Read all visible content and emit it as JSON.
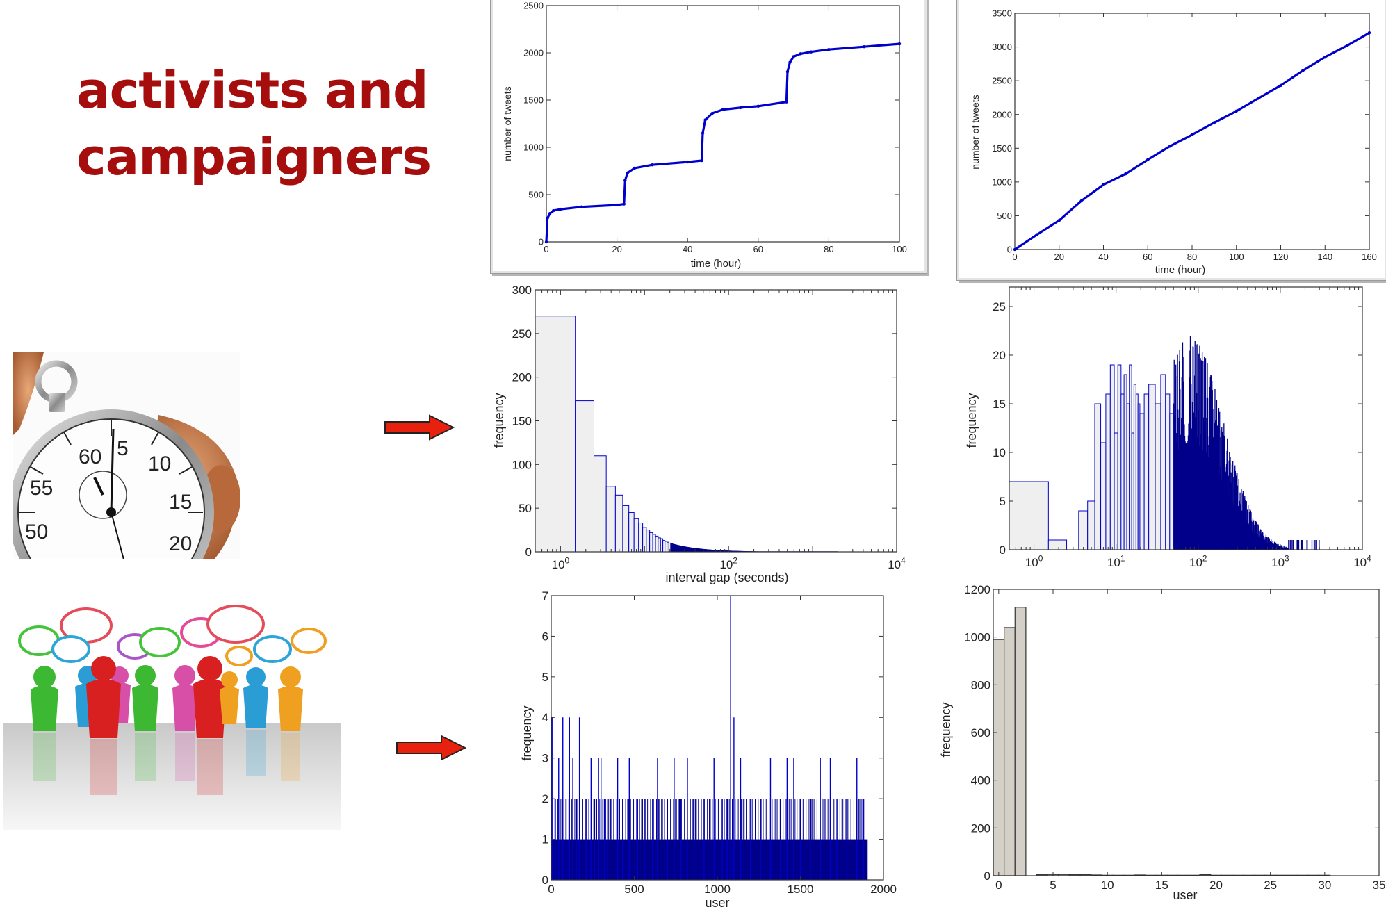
{
  "slide": {
    "title_lines": [
      "activists and",
      "campaigners"
    ],
    "colors": {
      "title": "#a60d0d",
      "series": "#0000cc",
      "histogram": "#00008b",
      "bar_fill": "#d4d0c8",
      "arrow": "#e8210f"
    },
    "images": [
      "stopwatch-photo",
      "crowd-speech-bubbles-illustration"
    ]
  },
  "chart_data": [
    {
      "id": "cumulative-a",
      "type": "line",
      "title": "",
      "xlabel": "time (hour)",
      "ylabel": "number of tweets",
      "xlim": [
        0,
        100
      ],
      "ylim": [
        0,
        2500
      ],
      "xticks": [
        0,
        20,
        40,
        60,
        80,
        100
      ],
      "yticks": [
        0,
        500,
        1000,
        1500,
        2000,
        2500
      ],
      "x": [
        0,
        0.3,
        1,
        2,
        4,
        10,
        20,
        22,
        22.3,
        23,
        25,
        30,
        40,
        44,
        44.3,
        45,
        47,
        50,
        55,
        60,
        68,
        68.3,
        69,
        70,
        72,
        75,
        80,
        90,
        100
      ],
      "y": [
        0,
        250,
        300,
        330,
        345,
        370,
        390,
        400,
        650,
        730,
        780,
        815,
        845,
        860,
        1150,
        1290,
        1360,
        1400,
        1420,
        1435,
        1480,
        1800,
        1900,
        1960,
        1990,
        2010,
        2035,
        2065,
        2095
      ]
    },
    {
      "id": "cumulative-b",
      "type": "line",
      "title": "",
      "xlabel": "time (hour)",
      "ylabel": "number of tweets",
      "xlim": [
        0,
        160
      ],
      "ylim": [
        0,
        3500
      ],
      "xticks": [
        0,
        20,
        40,
        60,
        80,
        100,
        120,
        140,
        160
      ],
      "yticks": [
        0,
        500,
        1000,
        1500,
        2000,
        2500,
        3000,
        3500
      ],
      "x": [
        0,
        10,
        20,
        30,
        40,
        50,
        60,
        70,
        80,
        90,
        100,
        110,
        120,
        130,
        140,
        150,
        160
      ],
      "y": [
        0,
        220,
        430,
        720,
        960,
        1120,
        1330,
        1530,
        1700,
        1880,
        2050,
        2240,
        2430,
        2650,
        2850,
        3020,
        3210
      ]
    },
    {
      "id": "interval-a",
      "type": "bar",
      "title": "",
      "xlabel": "interval gap (seconds)",
      "ylabel": "frequency",
      "xscale": "log",
      "xlim": [
        0.5,
        10000
      ],
      "ylim": [
        0,
        300
      ],
      "xticks": [
        "10^0",
        "10^2",
        "10^4"
      ],
      "yticks": [
        0,
        50,
        100,
        150,
        200,
        250,
        300
      ],
      "bin_left_edges": [
        0.5,
        1.5,
        2.5,
        3.5,
        4.5,
        5.5,
        6.5,
        7.5,
        8.5,
        9.5,
        10.5,
        11.5,
        12.5,
        13.5,
        14.5,
        15.5,
        16.5,
        17.5,
        18.5,
        19.5
      ],
      "values": [
        270,
        173,
        110,
        75,
        65,
        53,
        45,
        38,
        33,
        28,
        25,
        22,
        20,
        18,
        16,
        15,
        13,
        12,
        11,
        10
      ]
    },
    {
      "id": "interval-b",
      "type": "bar",
      "title": "",
      "xlabel": "",
      "ylabel": "frequency",
      "xscale": "log",
      "xlim": [
        0.5,
        10000
      ],
      "ylim": [
        0,
        27
      ],
      "xticks": [
        "10^0",
        "10^1",
        "10^2",
        "10^3",
        "10^4"
      ],
      "yticks": [
        0,
        5,
        10,
        15,
        20,
        25
      ],
      "bin_left_edges": [
        0.5,
        1.5,
        2.5,
        3.5,
        4.5,
        5.5,
        6.5,
        7.5,
        8.5,
        9.5,
        10.5,
        11.5,
        12.5,
        13.5,
        14.5,
        15.5,
        16.5,
        17.5,
        18.5,
        19.5,
        22,
        25,
        30,
        35,
        40,
        45,
        50
      ],
      "values": [
        7,
        1,
        0,
        4,
        5,
        15,
        11,
        16,
        19,
        12,
        19,
        16,
        18,
        15,
        19,
        12,
        17,
        16,
        15,
        14,
        16,
        17,
        15,
        18,
        16,
        14,
        15
      ]
    },
    {
      "id": "user-a",
      "type": "bar",
      "title": "",
      "xlabel": "user",
      "ylabel": "frequency",
      "xlim": [
        0,
        2000
      ],
      "ylim": [
        0,
        7
      ],
      "xticks": [
        0,
        500,
        1000,
        1500,
        2000
      ],
      "yticks": [
        0,
        1,
        2,
        3,
        4,
        5,
        6,
        7
      ],
      "base_level": 1,
      "users_with_base_level": [
        0,
        1905
      ],
      "spikes_x": [
        5,
        25,
        45,
        70,
        90,
        110,
        130,
        150,
        170,
        210,
        240,
        260,
        285,
        300,
        320,
        340,
        400,
        430,
        470,
        520,
        560,
        610,
        640,
        700,
        740,
        780,
        820,
        860,
        920,
        980,
        1030,
        1060,
        1080,
        1100,
        1140,
        1200,
        1260,
        1320,
        1380,
        1420,
        1460,
        1500,
        1560,
        1620,
        1680,
        1720,
        1780,
        1840,
        1880
      ],
      "spikes_y": [
        4,
        2,
        3,
        4,
        2,
        4,
        3,
        2,
        4,
        2,
        3,
        2,
        3,
        3,
        2,
        2,
        3,
        2,
        3,
        2,
        2,
        2,
        3,
        2,
        3,
        2,
        3,
        2,
        2,
        3,
        2,
        2,
        7,
        4,
        3,
        2,
        2,
        3,
        2,
        3,
        3,
        2,
        2,
        3,
        3,
        2,
        2,
        3,
        2
      ]
    },
    {
      "id": "user-b",
      "type": "bar",
      "title": "",
      "xlabel": "user",
      "ylabel": "frequency",
      "xlim": [
        -0.5,
        35
      ],
      "ylim": [
        0,
        1200
      ],
      "xticks": [
        0,
        5,
        10,
        15,
        20,
        25,
        30,
        35
      ],
      "yticks": [
        0,
        200,
        400,
        600,
        800,
        1000,
        1200
      ],
      "categories": [
        0,
        1,
        2,
        3,
        4,
        5,
        6,
        7,
        8,
        9,
        10,
        11,
        12,
        13,
        14,
        15,
        16,
        17,
        18,
        19,
        20,
        21,
        22,
        23,
        24,
        25,
        26,
        27,
        28,
        29,
        30
      ],
      "values": [
        990,
        1040,
        1125,
        0,
        4,
        5,
        5,
        4,
        4,
        3,
        2,
        2,
        2,
        3,
        2,
        2,
        2,
        2,
        2,
        4,
        2,
        2,
        2,
        2,
        2,
        2,
        2,
        2,
        2,
        2,
        2
      ]
    }
  ]
}
